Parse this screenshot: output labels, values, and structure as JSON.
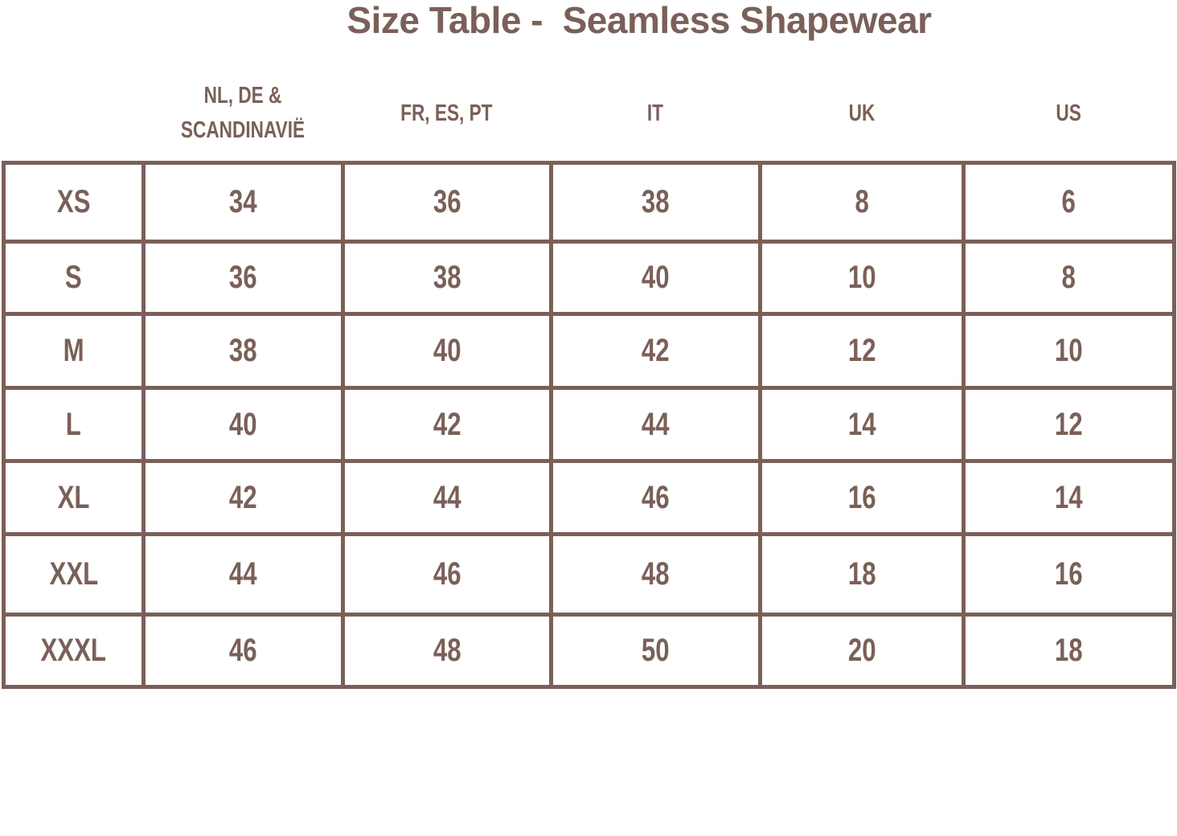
{
  "title": "Size Table -  Seamless Shapewear",
  "headers": [
    "NL, DE & SCANDINAVIË",
    "FR, ES, PT",
    "IT",
    "UK",
    "US"
  ],
  "rows": [
    {
      "size": "XS",
      "values": [
        "34",
        "36",
        "38",
        "8",
        "6"
      ]
    },
    {
      "size": "S",
      "values": [
        "36",
        "38",
        "40",
        "10",
        "8"
      ]
    },
    {
      "size": "M",
      "values": [
        "38",
        "40",
        "42",
        "12",
        "10"
      ]
    },
    {
      "size": "L",
      "values": [
        "40",
        "42",
        "44",
        "14",
        "12"
      ]
    },
    {
      "size": "XL",
      "values": [
        "42",
        "44",
        "46",
        "16",
        "14"
      ]
    },
    {
      "size": "XXL",
      "values": [
        "44",
        "46",
        "48",
        "18",
        "16"
      ]
    },
    {
      "size": "XXXL",
      "values": [
        "46",
        "48",
        "50",
        "20",
        "18"
      ]
    }
  ],
  "colors": {
    "text": "#7a6058",
    "border": "#7a6058"
  }
}
